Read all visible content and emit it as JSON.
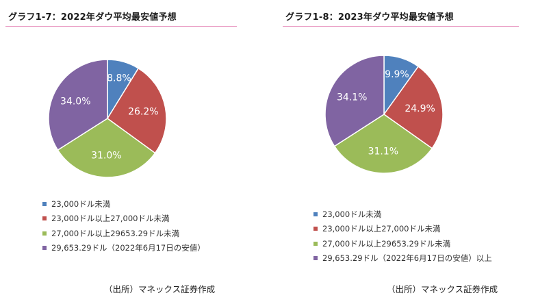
{
  "chart_data": [
    {
      "type": "pie",
      "title": "グラフ1-7：2022年ダウ平均最安値予想",
      "categories": [
        "23,000ドル未満",
        "23,000ドル以上27,000ドル未満",
        "27,000ドル以上29653.29ドル未満",
        "29,653.29ドル（2022年6月17日の安値）"
      ],
      "values": [
        8.8,
        26.2,
        31.0,
        34.0
      ],
      "labels": [
        "8.8%",
        "26.2%",
        "31.0%",
        "34.0%"
      ],
      "colors": [
        "#4f81bd",
        "#c0504d",
        "#9bbb59",
        "#8064a2"
      ],
      "source": "（出所）マネックス証券作成"
    },
    {
      "type": "pie",
      "title": "グラフ1-8：2023年ダウ平均最安値予想",
      "categories": [
        "23,000ドル未満",
        "23,000ドル以上27,000ドル未満",
        "27,000ドル以上29653.29ドル未満",
        "29,653.29ドル（2022年6月17日の安値）以上"
      ],
      "values": [
        9.9,
        24.9,
        31.1,
        34.1
      ],
      "labels": [
        "9.9%",
        "24.9%",
        "31.1%",
        "34.1%"
      ],
      "colors": [
        "#4f81bd",
        "#c0504d",
        "#9bbb59",
        "#8064a2"
      ],
      "source": "（出所）マネックス証券作成"
    }
  ]
}
